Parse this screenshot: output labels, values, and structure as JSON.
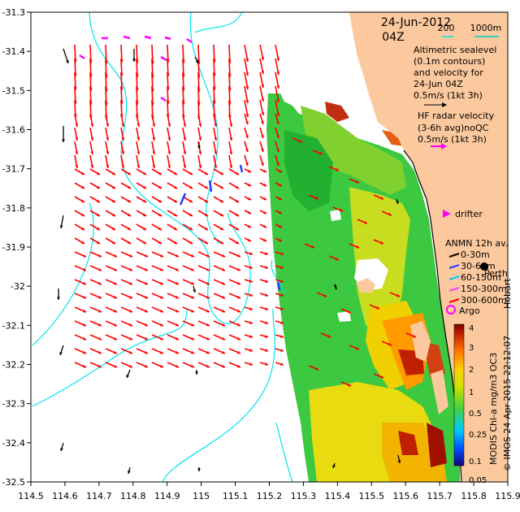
{
  "map": {
    "date": "24-Jun-2012",
    "time": "04Z",
    "scale_bar": {
      "label_200": "200",
      "label_1000": "1000m"
    },
    "legend_altimetry": [
      "Altimetric sealevel",
      "(0.1m contours)",
      "and velocity for",
      "24-Jun 04Z",
      "0.5m/s (1kt 3h)"
    ],
    "legend_hf": [
      "HF radar velocity",
      "(3-6h avg)noQC",
      "0.5m/s (1kt 3h)"
    ],
    "legend_drifter": "drifter",
    "legend_anmn_title": "ANMN 12h av.",
    "legend_anmn_items": [
      {
        "label": "0-30m",
        "color": "#000000"
      },
      {
        "label": "30-60m",
        "color": "#1f3fff"
      },
      {
        "label": "60-150m",
        "color": "#00c8ff"
      },
      {
        "label": "150-300m",
        "color": "#ff40ff"
      },
      {
        "label": "300-600m",
        "color": "#ff0000"
      }
    ],
    "place_perth": "Perth",
    "place_hobart": "Hobart",
    "legend_argo": "Argo",
    "colorbar_title": "MODIS Chl-a mg/m3 OC3",
    "colorbar_ticks": [
      "4",
      "3",
      "2",
      "1",
      "0.5",
      "0.25",
      "0.1",
      "0.05"
    ],
    "credit": "© IMOS 24-Apr-2015 22:12:07",
    "x_ticks": [
      "114.5",
      "114.6",
      "114.7",
      "114.8",
      "114.9",
      "115",
      "115.1",
      "115.2",
      "115.3",
      "115.4",
      "115.5",
      "115.6",
      "115.7",
      "115.8",
      "115.9"
    ],
    "y_ticks": [
      "-31.3",
      "-31.4",
      "-31.5",
      "-31.6",
      "-31.7",
      "-31.8",
      "-31.9",
      "-32",
      "-32.1",
      "-32.2",
      "-32.3",
      "-32.4",
      "-32.5"
    ],
    "colors": {
      "land": "#fcc99e",
      "velocity_red": "#ff0000",
      "contour": "#00e5ee",
      "drifter": "#ff00ff",
      "argo": "#ff00ff"
    }
  }
}
